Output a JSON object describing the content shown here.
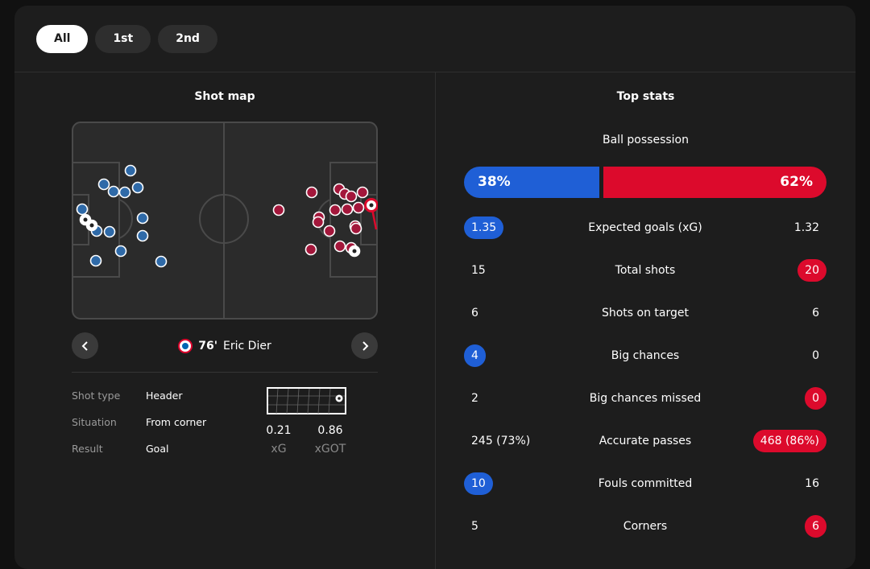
{
  "tabs": [
    {
      "label": "All",
      "active": true
    },
    {
      "label": "1st",
      "active": false
    },
    {
      "label": "2nd",
      "active": false
    }
  ],
  "shot_map": {
    "title": "Shot map",
    "selected_shot": {
      "minute": "76'",
      "player": "Eric Dier",
      "details": [
        {
          "key": "Shot type",
          "value": "Header"
        },
        {
          "key": "Situation",
          "value": "From corner"
        },
        {
          "key": "Result",
          "value": "Goal"
        }
      ],
      "xg": "0.21",
      "xg_label": "xG",
      "xgot": "0.86",
      "xgot_label": "xGOT"
    },
    "colors": {
      "home": "#1f5fd6",
      "away": "#dc0a2c",
      "home_shot": "#2f6aa8",
      "away_shot": "#a3173b"
    }
  },
  "top_stats": {
    "title": "Top stats",
    "possession": {
      "label": "Ball possession",
      "home": "38%",
      "away": "62%",
      "home_fraction": 0.38
    },
    "rows": [
      {
        "label": "Expected goals (xG)",
        "home": "1.35",
        "away": "1.32",
        "highlight": "home"
      },
      {
        "label": "Total shots",
        "home": "15",
        "away": "20",
        "highlight": "away"
      },
      {
        "label": "Shots on target",
        "home": "6",
        "away": "6",
        "highlight": "none"
      },
      {
        "label": "Big chances",
        "home": "4",
        "away": "0",
        "highlight": "home"
      },
      {
        "label": "Big chances missed",
        "home": "2",
        "away": "0",
        "highlight": "away"
      },
      {
        "label": "Accurate passes",
        "home": "245 (73%)",
        "away": "468 (86%)",
        "highlight": "away"
      },
      {
        "label": "Fouls committed",
        "home": "10",
        "away": "16",
        "highlight": "home"
      },
      {
        "label": "Corners",
        "home": "5",
        "away": "6",
        "highlight": "away"
      }
    ]
  }
}
